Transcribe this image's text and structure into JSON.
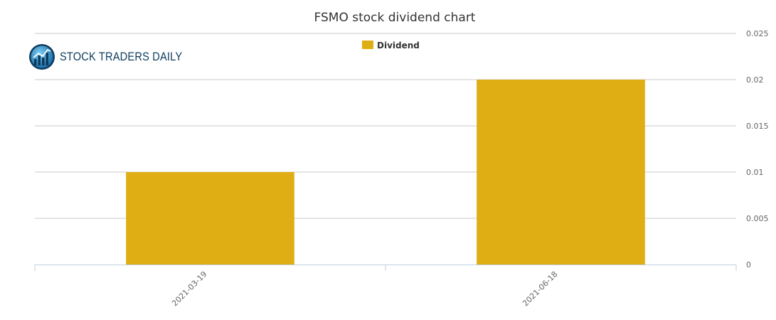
{
  "colors": {
    "bar": "#dfae14",
    "grid": "#c8c8c8",
    "axis": "#c0d0e0",
    "tick_text": "#666666",
    "title_text": "#333333",
    "logo_text": "#0d3b5e"
  },
  "logo": {
    "text": "STOCK TRADERS DAILY",
    "icon": "bar-chart-globe-icon"
  },
  "chart_data": {
    "type": "bar",
    "title": "FSMO stock dividend chart",
    "categories": [
      "2021-03-19",
      "2021-06-18"
    ],
    "series": [
      {
        "name": "Dividend",
        "values": [
          0.01,
          0.02
        ]
      }
    ],
    "ylim": [
      0,
      0.025
    ],
    "yticks": [
      "0",
      "0.005",
      "0.01",
      "0.015",
      "0.02",
      "0.025"
    ],
    "y_axis_side": "right",
    "grid": true,
    "legend_position": "top-center"
  }
}
